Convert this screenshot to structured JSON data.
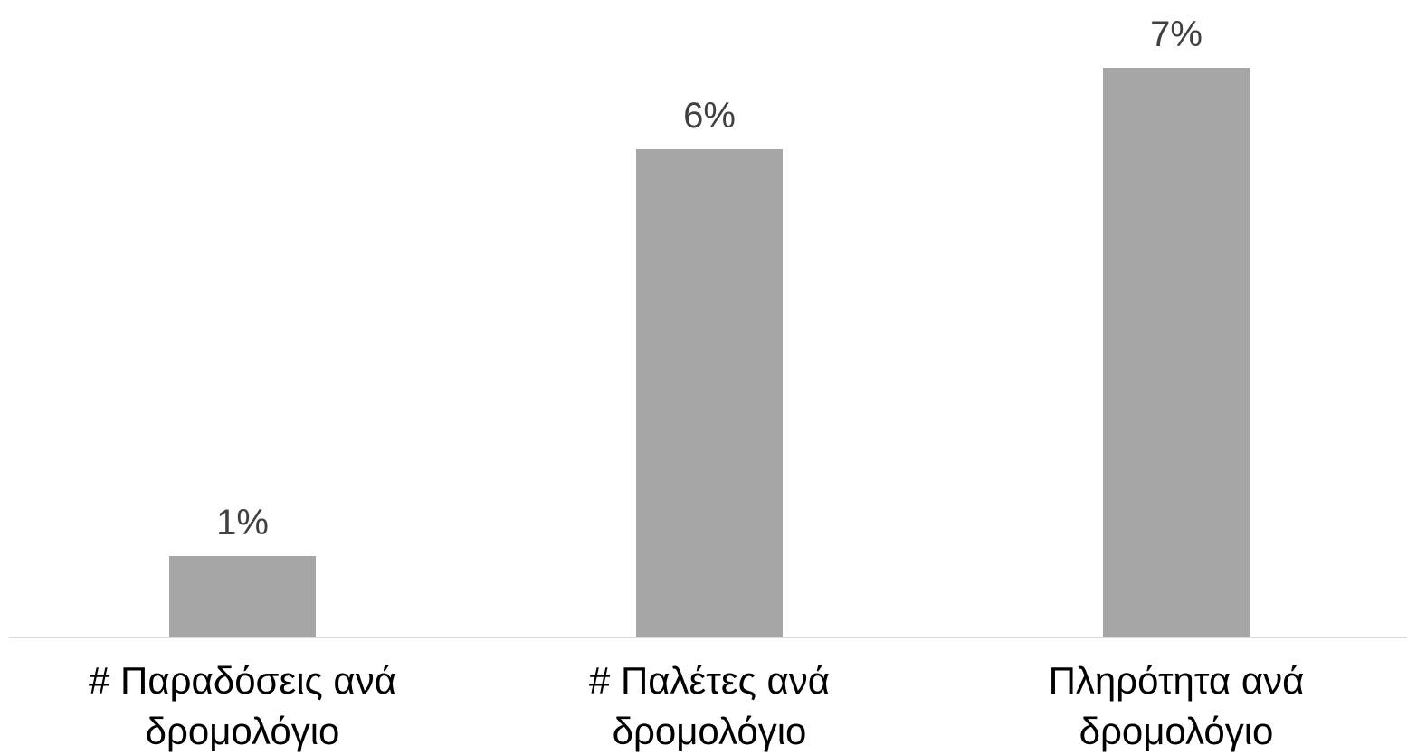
{
  "chart_data": {
    "type": "bar",
    "categories": [
      [
        "# Παραδόσεις ανά",
        "δρομολόγιο"
      ],
      [
        "# Παλέτες ανά",
        "δρομολόγιο"
      ],
      [
        "Πληρότητα ανά",
        "δρομολόγιο"
      ]
    ],
    "values": [
      1,
      6,
      7
    ],
    "data_labels": [
      "1%",
      "6%",
      "7%"
    ],
    "ylim": [
      0,
      7.5
    ],
    "grid": false,
    "legend": "none",
    "bar_color": "#a6a6a6",
    "axis_color": "#d9d9d9",
    "label_color": "#404040"
  }
}
